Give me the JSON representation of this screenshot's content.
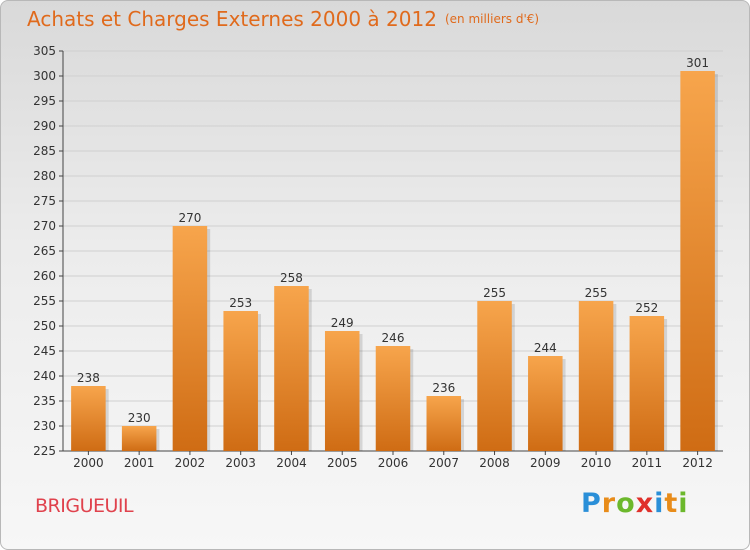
{
  "title": "Achats et Charges Externes 2000 à 2012",
  "unit_label": "(en milliers d'€)",
  "town": "BRIGUEUIL",
  "logo": {
    "letters": [
      "P",
      "r",
      "o",
      "x",
      "i",
      "t",
      "i"
    ],
    "colors": [
      "#2a8fd8",
      "#e88c1a",
      "#6cb82c",
      "#e0302a",
      "#2a8fd8",
      "#e88c1a",
      "#6cb82c"
    ]
  },
  "colors": {
    "bar_light": "#f7a54c",
    "bar_dark": "#cf6c14",
    "title": "#e06a1c",
    "town": "#e0424d",
    "grid": "#d0d0d0"
  },
  "chart_data": {
    "type": "bar",
    "categories": [
      "2000",
      "2001",
      "2002",
      "2003",
      "2004",
      "2005",
      "2006",
      "2007",
      "2008",
      "2009",
      "2010",
      "2011",
      "2012"
    ],
    "values": [
      238,
      230,
      270,
      253,
      258,
      249,
      246,
      236,
      255,
      244,
      255,
      252,
      301
    ],
    "data_labels": [
      "238",
      "230",
      "270",
      "253",
      "258",
      "249",
      "246",
      "236",
      "255",
      "244",
      "255",
      "252",
      "301"
    ],
    "ylim": [
      225,
      305
    ],
    "yticks": [
      "225",
      "230",
      "235",
      "240",
      "245",
      "250",
      "255",
      "260",
      "265",
      "270",
      "275",
      "280",
      "285",
      "290",
      "295",
      "300",
      "305"
    ],
    "grid": true,
    "xlabel": "",
    "ylabel": ""
  }
}
